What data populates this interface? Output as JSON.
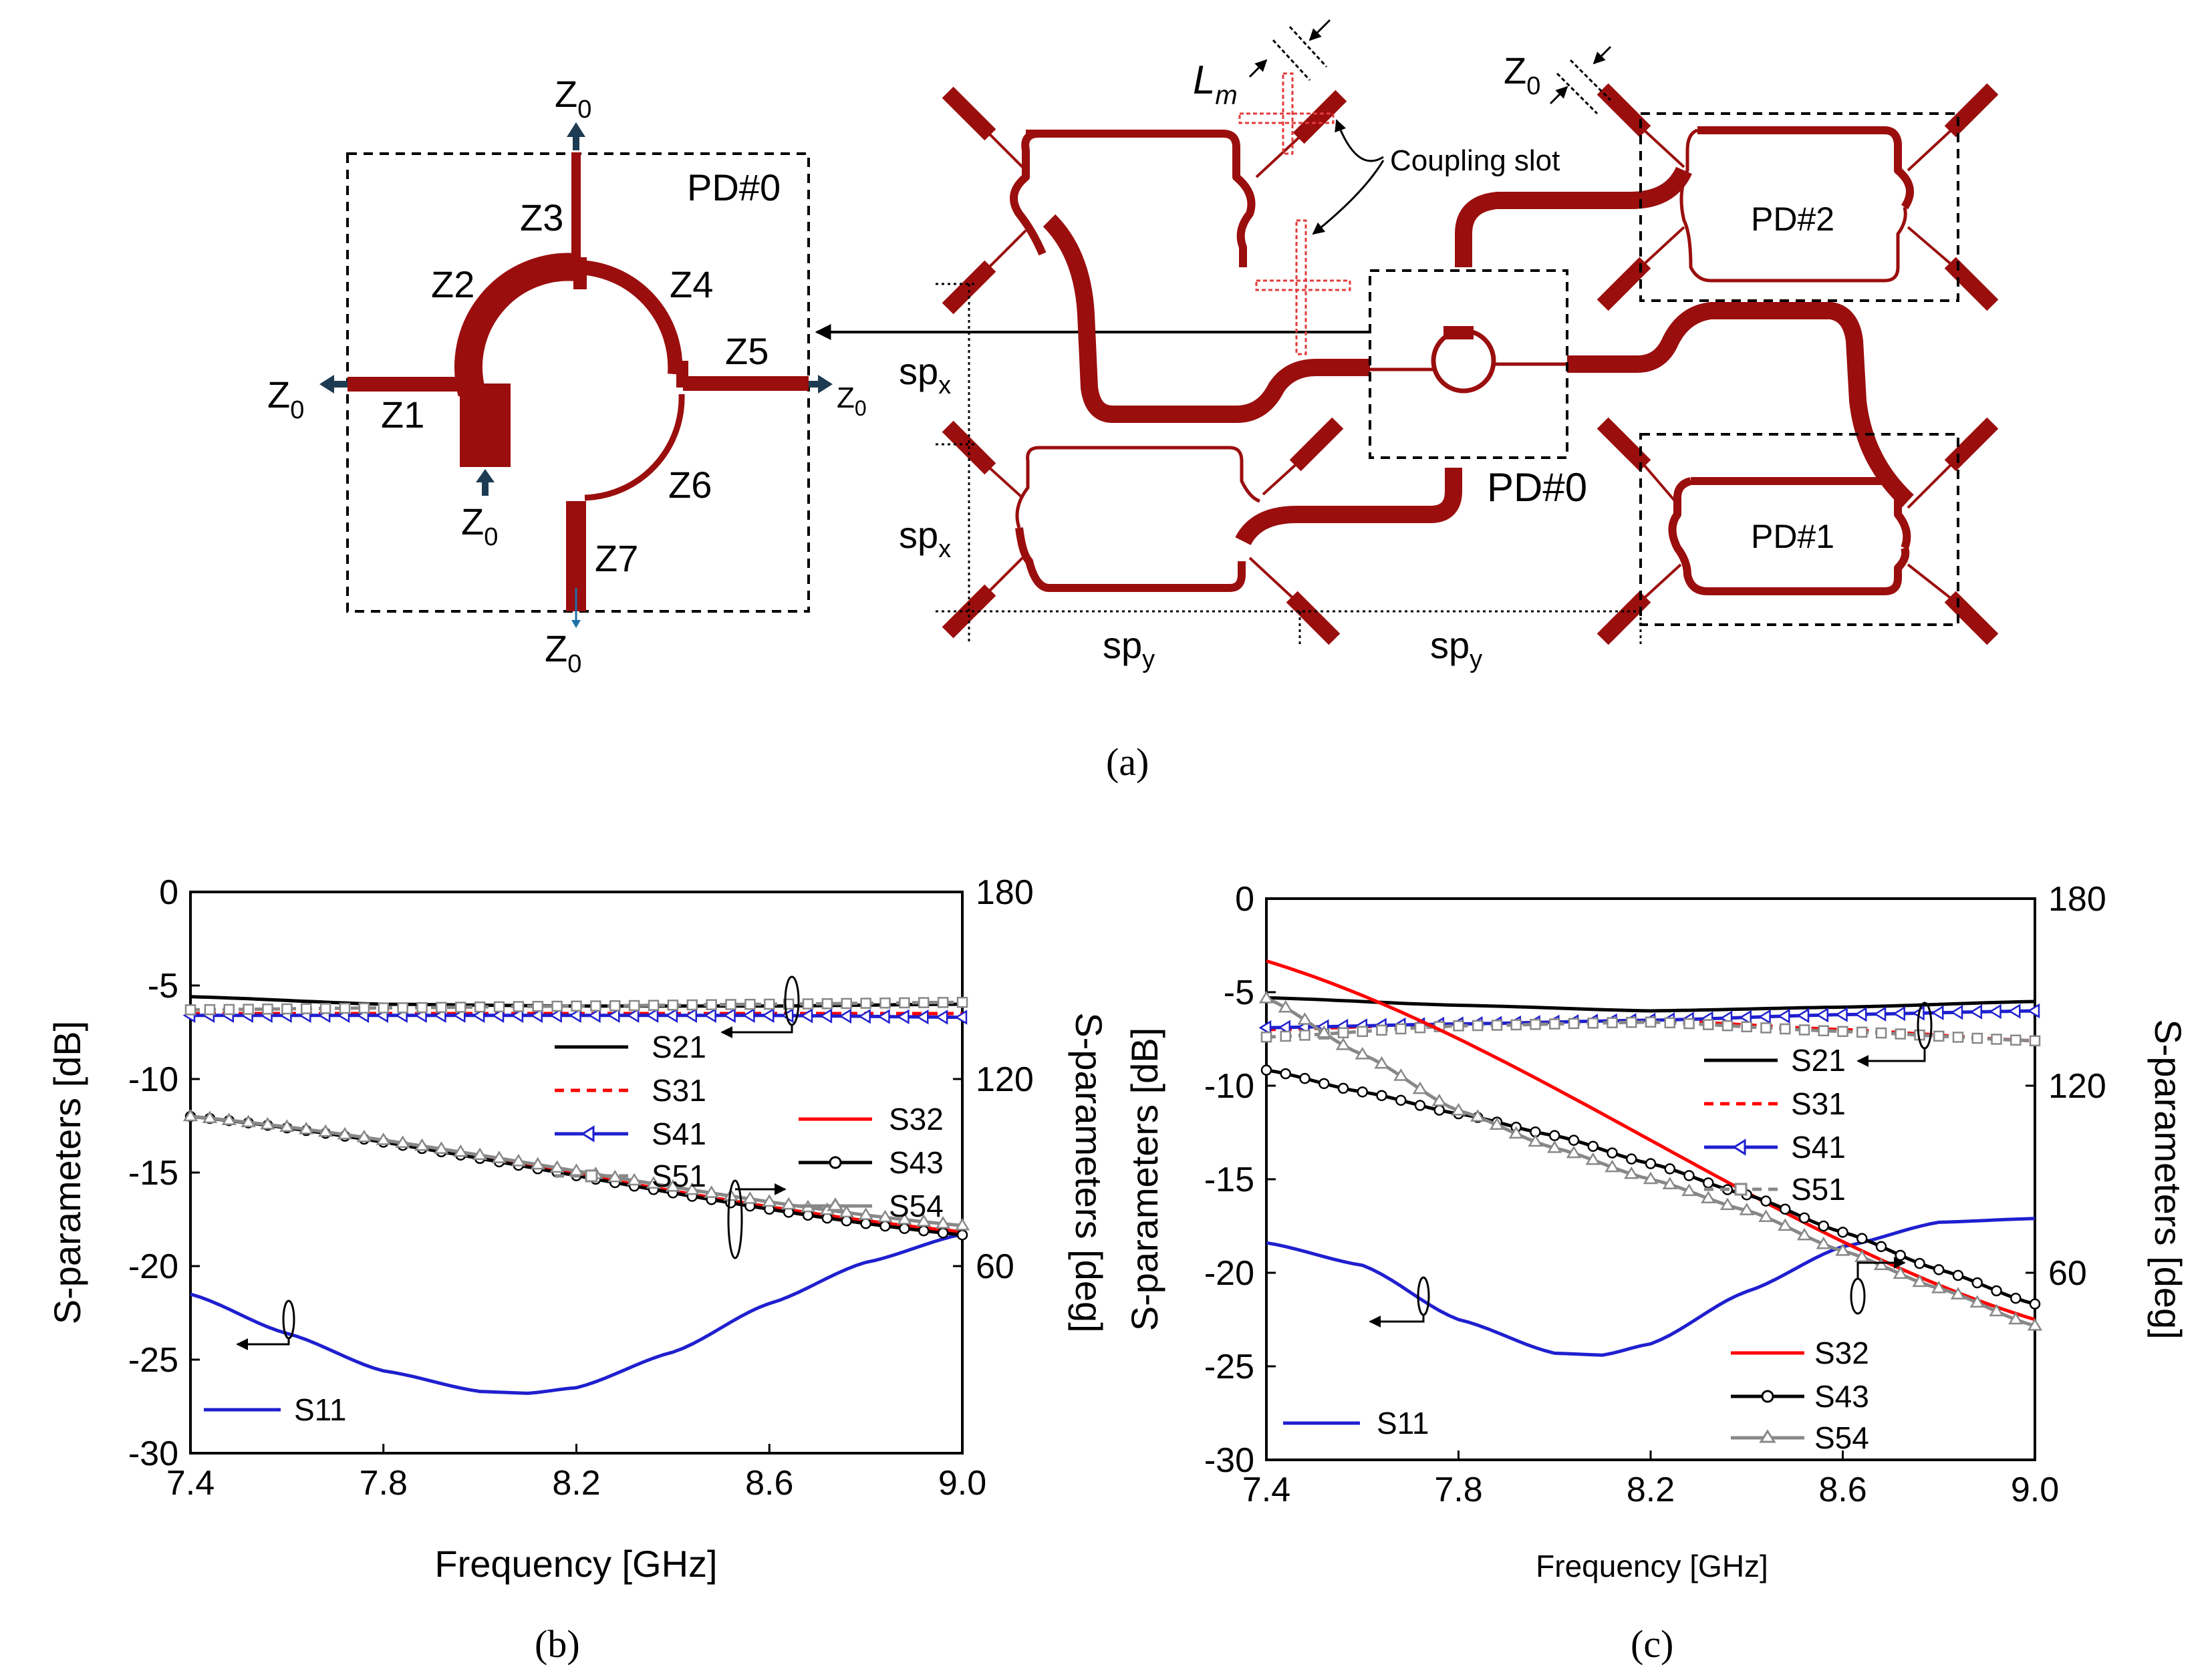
{
  "panel_a": {
    "caption": "(a)",
    "pd0_detail": {
      "title": "PD#0",
      "segments": [
        "Z1",
        "Z2",
        "Z3",
        "Z4",
        "Z5",
        "Z6",
        "Z7"
      ],
      "port_label": "Z",
      "port_sub": "0"
    },
    "array": {
      "lm_main": "L",
      "lm_sub": "m",
      "z0_main": "Z",
      "z0_sub": "0",
      "coupling_slot": "Coupling slot",
      "pd0": "PD#0",
      "pd1": "PD#1",
      "pd2": "PD#2",
      "spx_main": "sp",
      "spx_sub": "x",
      "spy_main": "sp",
      "spy_sub": "y"
    },
    "colors": {
      "trace": "#9b0e0e",
      "slot": "#e23b3b",
      "port_arrow": "#1d3b52"
    }
  },
  "panel_b": {
    "caption": "(b)"
  },
  "panel_c": {
    "caption": "(c)"
  },
  "chart_data": [
    {
      "type": "line",
      "panel": "b",
      "xlabel": "Frequency [GHz]",
      "ylabel": "S-parameters [dB]",
      "ylabel_right": "S-parameters [deg]",
      "xlim": [
        7.4,
        9.0
      ],
      "ylim": [
        -30,
        0
      ],
      "ylim_right": [
        0,
        180
      ],
      "xticks": [
        "7.4",
        "7.8",
        "8.2",
        "8.6",
        "9.0"
      ],
      "yticks": [
        "0",
        "-5",
        "-10",
        "-15",
        "-20",
        "-25",
        "-30"
      ],
      "yticks_right": [
        "180",
        "120",
        "60"
      ],
      "series": [
        {
          "name": "S21",
          "axis": "left",
          "color": "#000000",
          "dash": "",
          "marker": "",
          "x": [
            7.4,
            7.8,
            8.2,
            8.6,
            9.0
          ],
          "y": [
            -5.6,
            -6.0,
            -6.1,
            -6.1,
            -6.0
          ]
        },
        {
          "name": "S31",
          "axis": "left",
          "color": "#ff0000",
          "dash": "14,10",
          "marker": "",
          "x": [
            7.4,
            7.8,
            8.2,
            8.6,
            9.0
          ],
          "y": [
            -6.5,
            -6.5,
            -6.5,
            -6.5,
            -6.5
          ]
        },
        {
          "name": "S41",
          "axis": "left",
          "color": "#1f1fcf",
          "dash": "",
          "marker": "triangle-left",
          "x": [
            7.4,
            7.8,
            8.2,
            8.6,
            9.0
          ],
          "y": [
            -6.6,
            -6.6,
            -6.6,
            -6.6,
            -6.7
          ]
        },
        {
          "name": "S51",
          "axis": "left",
          "color": "#888888",
          "dash": "14,10",
          "marker": "square",
          "x": [
            7.4,
            7.8,
            8.2,
            8.6,
            9.0
          ],
          "y": [
            -6.3,
            -6.2,
            -6.1,
            -6.0,
            -5.9
          ]
        },
        {
          "name": "S11",
          "axis": "left",
          "color": "#1f1fcf",
          "dash": "",
          "marker": "",
          "x": [
            7.4,
            7.6,
            7.8,
            8.0,
            8.1,
            8.2,
            8.4,
            8.6,
            8.8,
            9.0
          ],
          "y": [
            -21.5,
            -23.6,
            -25.6,
            -26.7,
            -26.8,
            -26.5,
            -24.6,
            -22.0,
            -19.8,
            -18.3
          ]
        },
        {
          "name": "S32",
          "axis": "right",
          "color": "#ff0000",
          "dash": "",
          "marker": "",
          "x": [
            7.4,
            9.0
          ],
          "y": [
            108,
            71
          ]
        },
        {
          "name": "S43",
          "axis": "right",
          "color": "#000000",
          "dash": "",
          "marker": "circle",
          "x": [
            7.4,
            9.0
          ],
          "y": [
            108,
            70
          ]
        },
        {
          "name": "S54",
          "axis": "right",
          "color": "#888888",
          "dash": "",
          "marker": "triangle",
          "x": [
            7.4,
            9.0
          ],
          "y": [
            108,
            73
          ]
        }
      ],
      "legend": [
        "S21",
        "S31",
        "S41",
        "S51",
        "S32",
        "S43",
        "S54",
        "S11"
      ]
    },
    {
      "type": "line",
      "panel": "c",
      "xlabel": "Frequency [GHz]",
      "ylabel": "S-parameters [dB]",
      "ylabel_right": "S-parameters [deg]",
      "xlim": [
        7.4,
        9.0
      ],
      "ylim": [
        -30,
        0
      ],
      "ylim_right": [
        0,
        180
      ],
      "xticks": [
        "7.4",
        "7.8",
        "8.2",
        "8.6",
        "9.0"
      ],
      "yticks": [
        "0",
        "-5",
        "-10",
        "-15",
        "-20",
        "-25",
        "-30"
      ],
      "yticks_right": [
        "180",
        "120",
        "60"
      ],
      "series": [
        {
          "name": "S21",
          "axis": "left",
          "color": "#000000",
          "dash": "",
          "marker": "",
          "x": [
            7.4,
            7.8,
            8.2,
            8.6,
            9.0
          ],
          "y": [
            -5.3,
            -5.7,
            -6.0,
            -5.8,
            -5.5
          ]
        },
        {
          "name": "S31",
          "axis": "left",
          "color": "#ff0000",
          "dash": "14,10",
          "marker": "",
          "x": [
            7.4,
            7.8,
            8.2,
            8.6,
            9.0
          ],
          "y": [
            -7.0,
            -6.7,
            -6.5,
            -7.0,
            -7.6
          ]
        },
        {
          "name": "S41",
          "axis": "left",
          "color": "#1f1fcf",
          "dash": "",
          "marker": "triangle-left",
          "x": [
            7.4,
            7.8,
            8.2,
            8.6,
            9.0
          ],
          "y": [
            -6.9,
            -6.7,
            -6.5,
            -6.2,
            -6.0
          ]
        },
        {
          "name": "S51",
          "axis": "left",
          "color": "#888888",
          "dash": "14,10",
          "marker": "square",
          "x": [
            7.4,
            7.8,
            8.2,
            8.6,
            9.0
          ],
          "y": [
            -7.4,
            -6.8,
            -6.6,
            -7.1,
            -7.6
          ]
        },
        {
          "name": "S11",
          "axis": "left",
          "color": "#1f1fcf",
          "dash": "",
          "marker": "",
          "x": [
            7.4,
            7.6,
            7.8,
            8.0,
            8.1,
            8.2,
            8.4,
            8.6,
            8.8,
            9.0
          ],
          "y": [
            -18.4,
            -19.6,
            -22.5,
            -24.3,
            -24.4,
            -23.8,
            -21.0,
            -18.6,
            -17.3,
            -17.1
          ]
        },
        {
          "name": "S32",
          "axis": "right",
          "color": "#ff0000",
          "dash": "",
          "marker": "",
          "x": [
            7.4,
            9.0
          ],
          "y": [
            160,
            45
          ]
        },
        {
          "name": "S43",
          "axis": "right",
          "color": "#000000",
          "dash": "",
          "marker": "circle",
          "x": [
            7.4,
            7.6,
            7.8,
            8.0,
            8.2,
            8.4,
            8.6,
            8.8,
            9.0
          ],
          "y": [
            125,
            118,
            111,
            104,
            95,
            85,
            73,
            61,
            50
          ]
        },
        {
          "name": "S54",
          "axis": "right",
          "color": "#888888",
          "dash": "",
          "marker": "triangle",
          "x": [
            7.4,
            7.6,
            7.8,
            8.0,
            8.2,
            8.4,
            8.6,
            8.8,
            9.0
          ],
          "y": [
            148,
            130,
            112,
            100,
            90,
            80,
            67,
            55,
            43
          ]
        }
      ],
      "legend": [
        "S21",
        "S31",
        "S41",
        "S51",
        "S32",
        "S43",
        "S54",
        "S11"
      ]
    }
  ]
}
